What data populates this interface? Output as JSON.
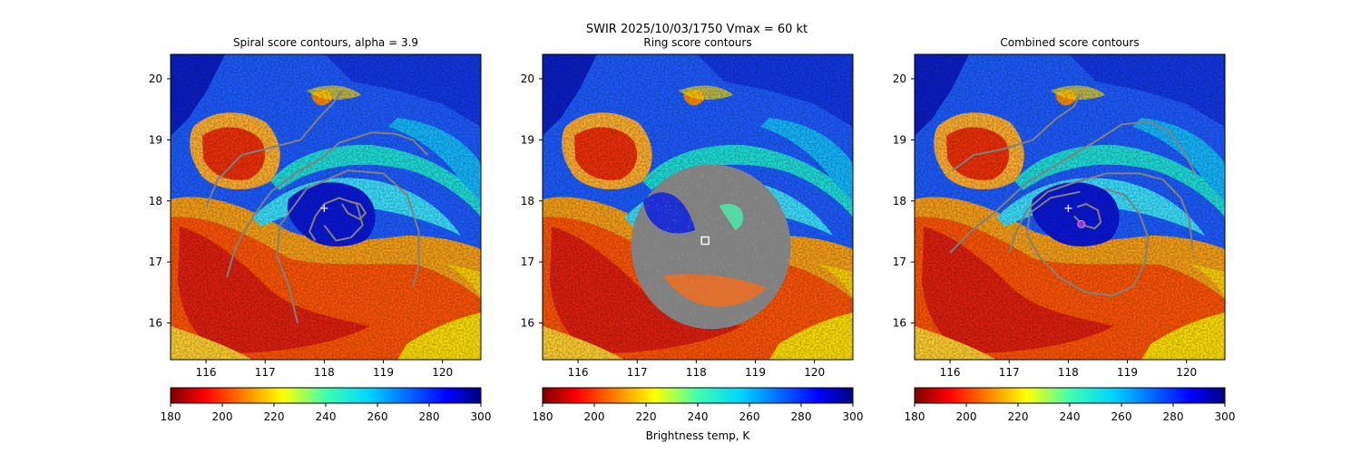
{
  "suptitle_line1": "SWIR  2025/10/03/1750    Vmax = 60 kt",
  "colors": {
    "contour": "#808080",
    "mask": "#808080",
    "center_marker": "#ffffff",
    "best_marker": "#9b30d0"
  },
  "chart_data": [
    {
      "type": "heatmap",
      "title": "Spiral score contours, alpha =  3.9",
      "xlim": [
        115.4,
        120.65
      ],
      "ylim": [
        15.4,
        20.4
      ],
      "xticks": [
        "116",
        "117",
        "118",
        "119",
        "120"
      ],
      "yticks": [
        "16",
        "17",
        "18",
        "19",
        "20"
      ],
      "image_field": "Brightness temperature (jet_r)",
      "center_marker": {
        "x": 118.0,
        "y": 17.88,
        "symbol": "+"
      },
      "contours": [
        [
          [
            116.0,
            17.9
          ],
          [
            116.2,
            18.35
          ],
          [
            116.6,
            18.75
          ],
          [
            117.2,
            18.9
          ],
          [
            117.6,
            19.0
          ],
          [
            117.9,
            19.35
          ],
          [
            118.15,
            19.6
          ],
          [
            118.3,
            19.8
          ]
        ],
        [
          [
            116.35,
            16.75
          ],
          [
            116.5,
            17.25
          ],
          [
            116.8,
            17.75
          ],
          [
            117.1,
            18.15
          ],
          [
            117.5,
            18.45
          ],
          [
            117.95,
            18.7
          ],
          [
            118.25,
            18.95
          ],
          [
            118.8,
            19.12
          ],
          [
            119.2,
            19.1
          ],
          [
            119.5,
            19.0
          ],
          [
            119.75,
            18.75
          ]
        ],
        [
          [
            117.55,
            16.0
          ],
          [
            117.4,
            16.6
          ],
          [
            117.2,
            17.1
          ],
          [
            117.25,
            17.6
          ],
          [
            117.7,
            18.2
          ],
          [
            118.4,
            18.5
          ],
          [
            119.0,
            18.45
          ],
          [
            119.4,
            18.1
          ],
          [
            119.6,
            17.5
          ],
          [
            119.6,
            16.95
          ],
          [
            119.5,
            16.6
          ]
        ],
        [
          [
            118.0,
            17.6
          ],
          [
            118.2,
            17.35
          ],
          [
            118.45,
            17.4
          ],
          [
            118.65,
            17.6
          ],
          [
            118.55,
            17.95
          ],
          [
            118.25,
            18.05
          ],
          [
            118.0,
            17.95
          ],
          [
            117.85,
            17.75
          ],
          [
            117.75,
            17.5
          ],
          [
            117.85,
            17.35
          ]
        ],
        [
          [
            118.3,
            17.95
          ],
          [
            118.4,
            17.8
          ],
          [
            118.6,
            17.7
          ],
          [
            118.7,
            17.8
          ],
          [
            118.6,
            17.95
          ],
          [
            118.4,
            18.0
          ]
        ]
      ],
      "colorbar": {
        "cmap": "jet_r",
        "range": [
          180,
          300
        ],
        "ticks": [
          "180",
          "200",
          "220",
          "240",
          "260",
          "280",
          "300"
        ]
      }
    },
    {
      "type": "heatmap",
      "title": "Ring score contours",
      "xlim": [
        115.4,
        120.65
      ],
      "ylim": [
        15.4,
        20.4
      ],
      "xticks": [
        "116",
        "117",
        "118",
        "119",
        "120"
      ],
      "yticks": [
        "16",
        "17",
        "18",
        "19",
        "20"
      ],
      "image_field": "Brightness temperature (jet_r)",
      "ring_mask": {
        "center": [
          118.25,
          17.25
        ],
        "radius_deg": 1.35
      },
      "best_marker": {
        "x": 118.15,
        "y": 17.35,
        "symbol": "square"
      },
      "colorbar": {
        "cmap": "jet_r",
        "range": [
          180,
          300
        ],
        "ticks": [
          "180",
          "200",
          "220",
          "240",
          "260",
          "280",
          "300"
        ],
        "label": "Brightness temp, K"
      }
    },
    {
      "type": "heatmap",
      "title": "Combined score contours",
      "xlim": [
        115.4,
        120.65
      ],
      "ylim": [
        15.4,
        20.4
      ],
      "xticks": [
        "116",
        "117",
        "118",
        "119",
        "120"
      ],
      "yticks": [
        "16",
        "17",
        "18",
        "19",
        "20"
      ],
      "image_field": "Brightness temperature (jet_r)",
      "center_marker": {
        "x": 118.0,
        "y": 17.88,
        "symbol": "+"
      },
      "best_marker": {
        "x": 118.22,
        "y": 17.62,
        "symbol": "circle"
      },
      "contours": [
        [
          [
            116.05,
            18.5
          ],
          [
            116.4,
            18.75
          ],
          [
            116.9,
            18.85
          ],
          [
            117.4,
            19.0
          ],
          [
            117.8,
            19.35
          ],
          [
            118.1,
            19.55
          ],
          [
            118.2,
            19.75
          ]
        ],
        [
          [
            116.0,
            17.15
          ],
          [
            116.35,
            17.5
          ],
          [
            116.8,
            17.85
          ],
          [
            117.3,
            18.3
          ],
          [
            117.9,
            18.65
          ],
          [
            118.5,
            19.0
          ],
          [
            118.9,
            19.25
          ],
          [
            119.35,
            19.3
          ],
          [
            119.7,
            19.15
          ],
          [
            119.95,
            18.8
          ],
          [
            120.15,
            18.45
          ]
        ],
        [
          [
            117.0,
            17.15
          ],
          [
            117.1,
            17.45
          ],
          [
            117.3,
            17.85
          ],
          [
            117.65,
            18.15
          ],
          [
            118.1,
            18.3
          ],
          [
            118.65,
            18.45
          ],
          [
            119.2,
            18.45
          ],
          [
            119.6,
            18.35
          ],
          [
            119.9,
            18.05
          ],
          [
            120.05,
            17.7
          ],
          [
            120.1,
            17.2
          ]
        ],
        [
          [
            118.2,
            18.15
          ],
          [
            117.7,
            18.05
          ],
          [
            117.35,
            17.8
          ],
          [
            117.3,
            17.45
          ],
          [
            117.5,
            17.1
          ],
          [
            117.85,
            16.75
          ],
          [
            118.3,
            16.5
          ],
          [
            118.75,
            16.45
          ],
          [
            119.1,
            16.6
          ],
          [
            119.3,
            17.0
          ],
          [
            119.35,
            17.4
          ],
          [
            119.2,
            17.8
          ],
          [
            118.95,
            18.1
          ],
          [
            118.6,
            18.2
          ]
        ],
        [
          [
            118.1,
            17.75
          ],
          [
            118.25,
            17.6
          ],
          [
            118.45,
            17.55
          ],
          [
            118.55,
            17.65
          ],
          [
            118.5,
            17.85
          ],
          [
            118.3,
            17.95
          ],
          [
            118.15,
            17.9
          ]
        ]
      ],
      "colorbar": {
        "cmap": "jet_r",
        "range": [
          180,
          300
        ],
        "ticks": [
          "180",
          "200",
          "220",
          "240",
          "260",
          "280",
          "300"
        ]
      }
    }
  ]
}
